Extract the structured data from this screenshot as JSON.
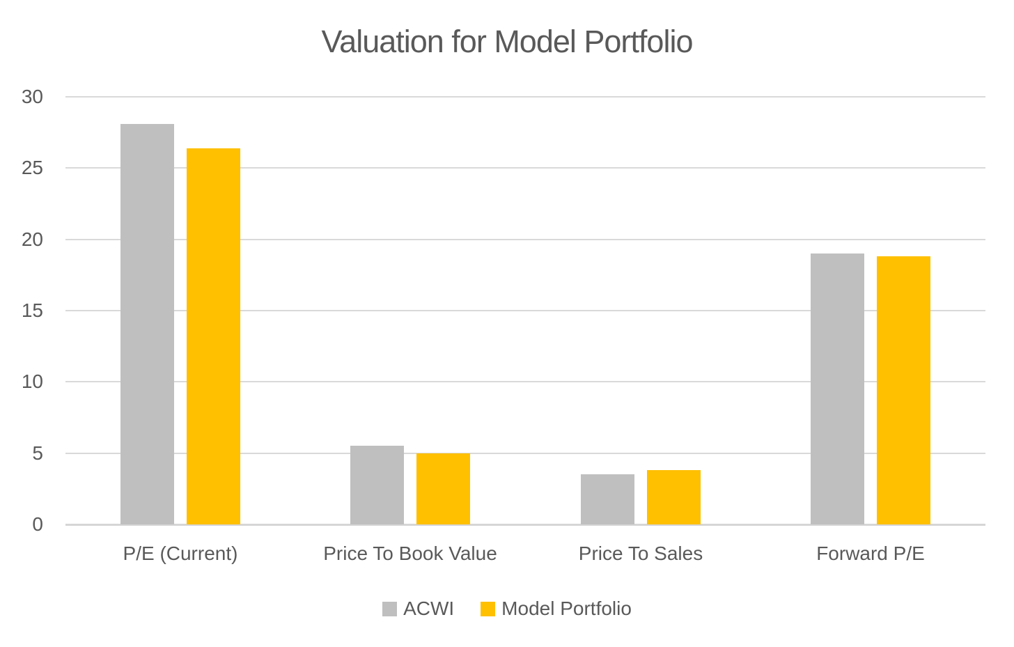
{
  "chart_data": {
    "type": "bar",
    "title": "Valuation for Model Portfolio",
    "categories": [
      "P/E (Current)",
      "Price To Book Value",
      "Price To Sales",
      "Forward P/E"
    ],
    "series": [
      {
        "name": "ACWI",
        "color": "#BFBFBF",
        "values": [
          28.1,
          5.5,
          3.5,
          19.0
        ]
      },
      {
        "name": "Model Portfolio",
        "color": "#FFC000",
        "values": [
          26.4,
          5.0,
          3.8,
          18.8
        ]
      }
    ],
    "xlabel": "",
    "ylabel": "",
    "ylim": [
      0,
      30
    ],
    "yticks": [
      0,
      5,
      10,
      15,
      20,
      25,
      30
    ],
    "grid": true,
    "legend_position": "bottom",
    "colors": {
      "background": "#FFFFFF",
      "gridline": "#D9D9D9",
      "axis_line": "#D6D6D6",
      "text": "#595959"
    }
  }
}
